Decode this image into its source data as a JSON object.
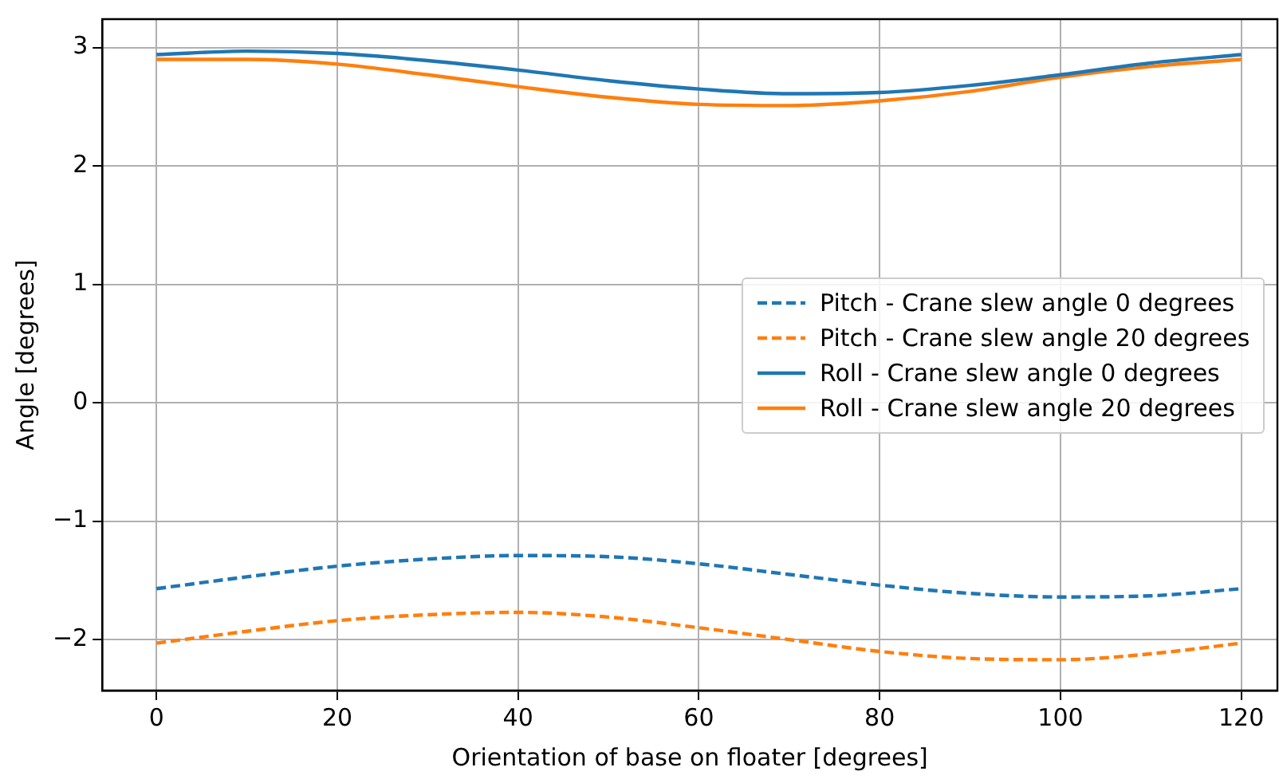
{
  "chart_data": {
    "type": "line",
    "xlabel": "Orientation of base on floater [degrees]",
    "ylabel": "Angle [degrees]",
    "x": [
      0,
      10,
      20,
      30,
      40,
      50,
      60,
      70,
      80,
      90,
      100,
      110,
      120
    ],
    "series": [
      {
        "name": "Pitch - Crane slew angle 0 degrees",
        "color": "#1f77b4",
        "line_style": "dashed",
        "values": [
          -1.57,
          -1.47,
          -1.38,
          -1.32,
          -1.29,
          -1.3,
          -1.36,
          -1.45,
          -1.54,
          -1.61,
          -1.64,
          -1.63,
          -1.57
        ]
      },
      {
        "name": "Pitch - Crane slew angle 20 degrees",
        "color": "#ff7f0e",
        "line_style": "dashed",
        "values": [
          -2.03,
          -1.93,
          -1.84,
          -1.79,
          -1.77,
          -1.81,
          -1.9,
          -2.0,
          -2.1,
          -2.16,
          -2.17,
          -2.12,
          -2.03
        ]
      },
      {
        "name": "Roll - Crane slew angle 0 degrees",
        "color": "#1f77b4",
        "line_style": "solid",
        "values": [
          2.94,
          2.97,
          2.95,
          2.89,
          2.81,
          2.72,
          2.65,
          2.61,
          2.62,
          2.68,
          2.77,
          2.87,
          2.94
        ]
      },
      {
        "name": "Roll - Crane slew angle 20 degrees",
        "color": "#ff7f0e",
        "line_style": "solid",
        "values": [
          2.9,
          2.9,
          2.86,
          2.77,
          2.67,
          2.58,
          2.52,
          2.51,
          2.55,
          2.63,
          2.75,
          2.84,
          2.9
        ]
      }
    ],
    "xlim": [
      -6,
      124
    ],
    "ylim": [
      -2.43,
      3.24
    ],
    "xticks": [
      0,
      20,
      40,
      60,
      80,
      100,
      120
    ],
    "yticks": [
      {
        "value": -2,
        "label": "−2"
      },
      {
        "value": -1,
        "label": "−1"
      },
      0,
      1,
      2,
      3
    ],
    "grid": true,
    "legend": "center right",
    "marker": "none"
  }
}
